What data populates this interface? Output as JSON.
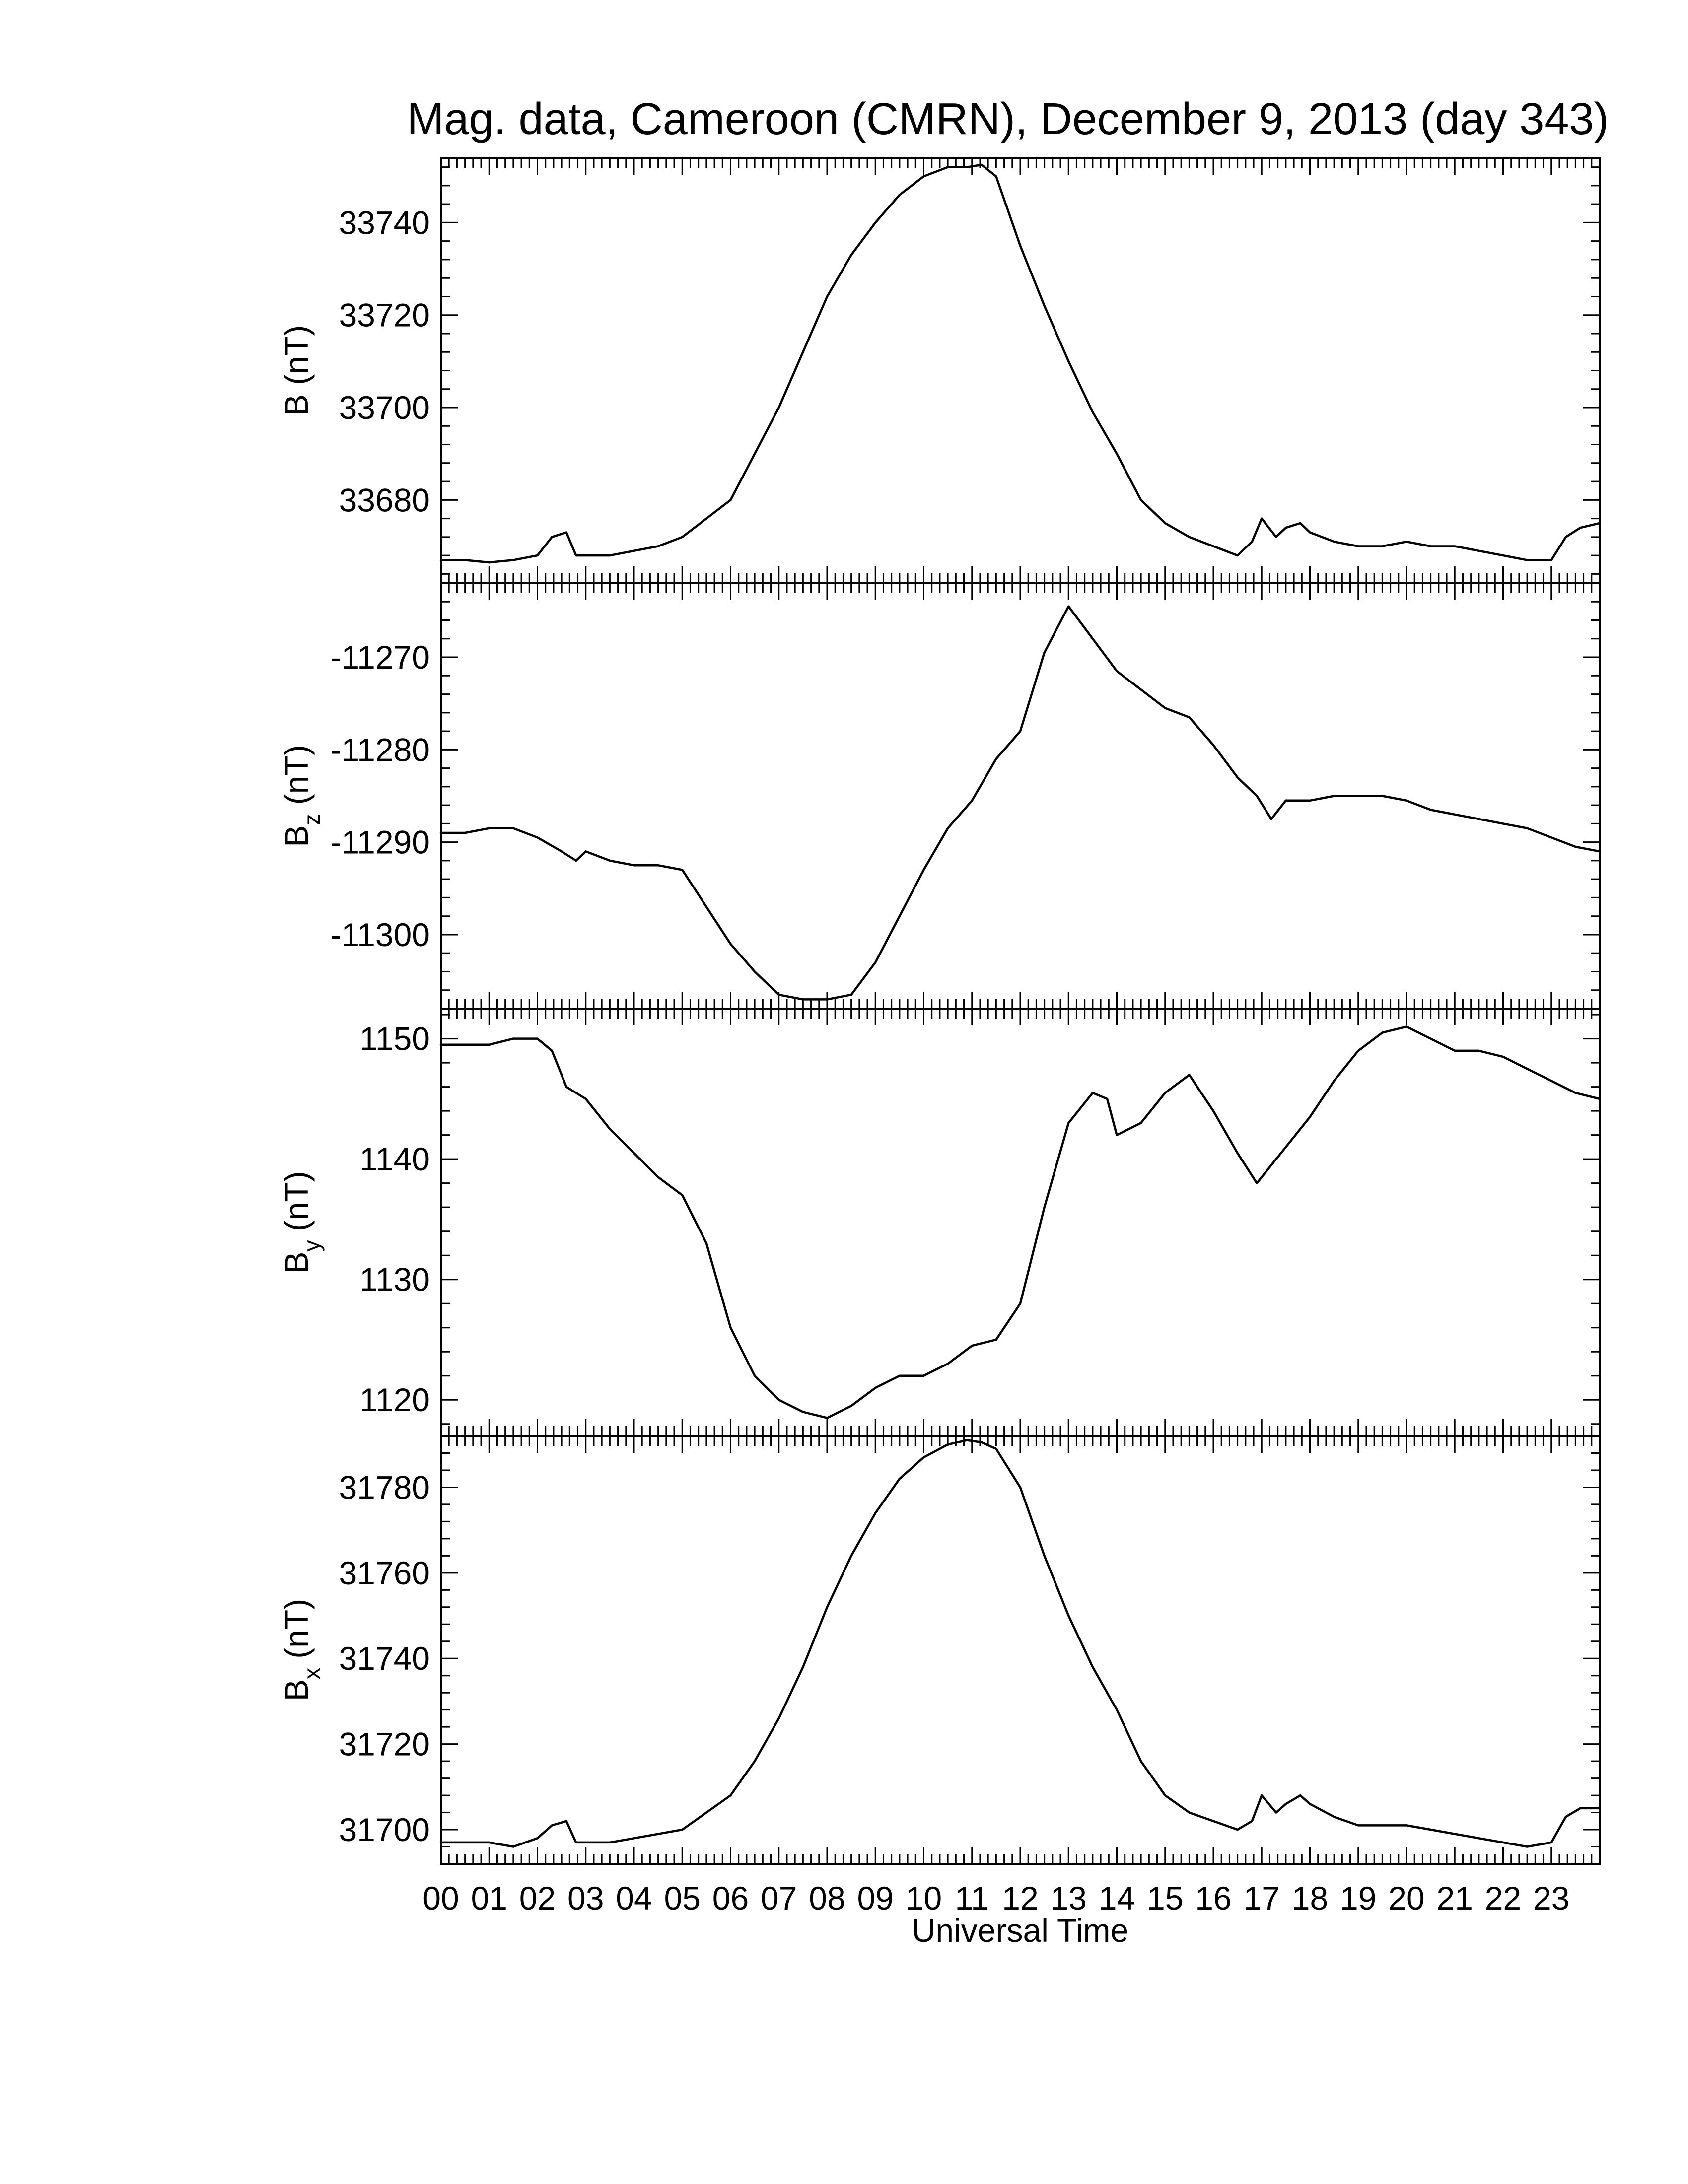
{
  "title": "Mag. data, Cameroon (CMRN), December 9, 2013 (day 343)",
  "chart_data": {
    "type": "line",
    "title": "Mag. data, Cameroon (CMRN), December 9, 2013 (day 343)",
    "xlabel": "Universal Time",
    "x_unit": "hour (UT)",
    "xlim": [
      0,
      24
    ],
    "x_tick_labels": [
      "00",
      "01",
      "02",
      "03",
      "04",
      "05",
      "06",
      "07",
      "08",
      "09",
      "10",
      "11",
      "12",
      "13",
      "14",
      "15",
      "16",
      "17",
      "18",
      "19",
      "20",
      "21",
      "22",
      "23"
    ],
    "grid": false,
    "legend": "none",
    "panels": [
      {
        "name": "B",
        "ylabel": "B (nT)",
        "ylabel_main": "B",
        "ylabel_sub": "",
        "ylabel_unit": " (nT)",
        "ylim": [
          33662,
          33754
        ],
        "y_ticks": [
          33680,
          33700,
          33720,
          33740
        ],
        "y_tick_labels": [
          "33680",
          "33700",
          "33720",
          "33740"
        ],
        "x": [
          0,
          0.5,
          1,
          1.5,
          2,
          2.3,
          2.6,
          2.8,
          3,
          3.5,
          4,
          4.5,
          5,
          5.5,
          6,
          6.5,
          7,
          7.5,
          8,
          8.5,
          9,
          9.5,
          10,
          10.5,
          10.9,
          11.2,
          11.5,
          12,
          12.5,
          13,
          13.5,
          14,
          14.5,
          15,
          15.5,
          16,
          16.5,
          16.8,
          17,
          17.3,
          17.5,
          17.8,
          18,
          18.5,
          19,
          19.5,
          20,
          20.5,
          21,
          21.5,
          22,
          22.5,
          23,
          23.3,
          23.6,
          24
        ],
        "y": [
          33667,
          33667,
          33666.5,
          33667,
          33668,
          33672,
          33673,
          33668,
          33668,
          33668,
          33669,
          33670,
          33672,
          33676,
          33680,
          33690,
          33700,
          33712,
          33724,
          33733,
          33740,
          33746,
          33750,
          33752,
          33752,
          33752.5,
          33750,
          33735,
          33722,
          33710,
          33699,
          33690,
          33680,
          33675,
          33672,
          33670,
          33668,
          33671,
          33676,
          33672,
          33674,
          33675,
          33673,
          33671,
          33670,
          33670,
          33671,
          33670,
          33670,
          33669,
          33668,
          33667,
          33667,
          33672,
          33674,
          33675
        ]
      },
      {
        "name": "Bz",
        "ylabel": "Bz (nT)",
        "ylabel_main": "B",
        "ylabel_sub": "z",
        "ylabel_unit": " (nT)",
        "ylim": [
          -11308,
          -11262
        ],
        "y_ticks": [
          -11300,
          -11290,
          -11280,
          -11270
        ],
        "y_tick_labels": [
          "-11300",
          "-11290",
          "-11280",
          "-11270"
        ],
        "x": [
          0,
          0.5,
          1,
          1.5,
          2,
          2.5,
          2.8,
          3,
          3.5,
          4,
          4.5,
          5,
          5.5,
          6,
          6.5,
          7,
          7.5,
          8,
          8.5,
          9,
          9.5,
          10,
          10.5,
          11,
          11.5,
          12,
          12.5,
          13,
          13.5,
          14,
          14.5,
          15,
          15.5,
          16,
          16.5,
          16.9,
          17.2,
          17.5,
          18,
          18.5,
          19,
          19.5,
          20,
          20.5,
          21,
          21.5,
          22,
          22.5,
          23,
          23.5,
          24
        ],
        "y": [
          -11289,
          -11289,
          -11288.5,
          -11288.5,
          -11289.5,
          -11291,
          -11292,
          -11291,
          -11292,
          -11292.5,
          -11292.5,
          -11293,
          -11297,
          -11301,
          -11304,
          -11306.5,
          -11307,
          -11307,
          -11306.5,
          -11303,
          -11298,
          -11293,
          -11288.5,
          -11285.5,
          -11281,
          -11278,
          -11269.5,
          -11264.5,
          -11268,
          -11271.5,
          -11273.5,
          -11275.5,
          -11276.5,
          -11279.5,
          -11283,
          -11285,
          -11287.5,
          -11285.5,
          -11285.5,
          -11285,
          -11285,
          -11285,
          -11285.5,
          -11286.5,
          -11287,
          -11287.5,
          -11288,
          -11288.5,
          -11289.5,
          -11290.5,
          -11291
        ]
      },
      {
        "name": "By",
        "ylabel": "By (nT)",
        "ylabel_main": "B",
        "ylabel_sub": "y",
        "ylabel_unit": " (nT)",
        "ylim": [
          1117,
          1152.5
        ],
        "y_ticks": [
          1120,
          1130,
          1140,
          1150
        ],
        "y_tick_labels": [
          "1120",
          "1130",
          "1140",
          "1150"
        ],
        "x": [
          0,
          0.5,
          1,
          1.5,
          2,
          2.3,
          2.6,
          3,
          3.5,
          4,
          4.5,
          5,
          5.5,
          6,
          6.5,
          7,
          7.5,
          8,
          8.5,
          9,
          9.5,
          10,
          10.5,
          11,
          11.5,
          12,
          12.5,
          13,
          13.5,
          13.8,
          14,
          14.5,
          15,
          15.5,
          16,
          16.5,
          16.9,
          17.2,
          17.5,
          18,
          18.5,
          19,
          19.5,
          20,
          20.5,
          21,
          21.5,
          22,
          22.5,
          23,
          23.5,
          24
        ],
        "y": [
          1149.5,
          1149.5,
          1149.5,
          1150,
          1150,
          1149,
          1146,
          1145,
          1142.5,
          1140.5,
          1138.5,
          1137,
          1133,
          1126,
          1122,
          1120,
          1119,
          1118.5,
          1119.5,
          1121,
          1122,
          1122,
          1123,
          1124.5,
          1125,
          1128,
          1136,
          1143,
          1145.5,
          1145,
          1142,
          1143,
          1145.5,
          1147,
          1144,
          1140.5,
          1138,
          1139.5,
          1141,
          1143.5,
          1146.5,
          1149,
          1150.5,
          1151,
          1150,
          1149,
          1149,
          1148.5,
          1147.5,
          1146.5,
          1145.5,
          1145
        ]
      },
      {
        "name": "Bx",
        "ylabel": "Bx (nT)",
        "ylabel_main": "B",
        "ylabel_sub": "x",
        "ylabel_unit": " (nT)",
        "ylim": [
          31692,
          31792
        ],
        "y_ticks": [
          31700,
          31720,
          31740,
          31760,
          31780
        ],
        "y_tick_labels": [
          "31700",
          "31720",
          "31740",
          "31760",
          "31780"
        ],
        "x": [
          0,
          0.5,
          1,
          1.5,
          2,
          2.3,
          2.6,
          2.8,
          3,
          3.5,
          4,
          4.5,
          5,
          5.5,
          6,
          6.5,
          7,
          7.5,
          8,
          8.5,
          9,
          9.5,
          10,
          10.5,
          10.9,
          11.2,
          11.5,
          12,
          12.5,
          13,
          13.5,
          14,
          14.5,
          15,
          15.5,
          16,
          16.5,
          16.8,
          17,
          17.3,
          17.5,
          17.8,
          18,
          18.5,
          19,
          19.5,
          20,
          20.5,
          21,
          21.5,
          22,
          22.5,
          23,
          23.3,
          23.6,
          24
        ],
        "y": [
          31697,
          31697,
          31697,
          31696,
          31698,
          31701,
          31702,
          31697,
          31697,
          31697,
          31698,
          31699,
          31700,
          31704,
          31708,
          31716,
          31726,
          31738,
          31752,
          31764,
          31774,
          31782,
          31787,
          31790,
          31791,
          31790.5,
          31789,
          31780,
          31764,
          31750,
          31738,
          31728,
          31716,
          31708,
          31704,
          31702,
          31700,
          31702,
          31708,
          31704,
          31706,
          31708,
          31706,
          31703,
          31701,
          31701,
          31701,
          31700,
          31699,
          31698,
          31697,
          31696,
          31697,
          31703,
          31705,
          31705
        ]
      }
    ]
  }
}
